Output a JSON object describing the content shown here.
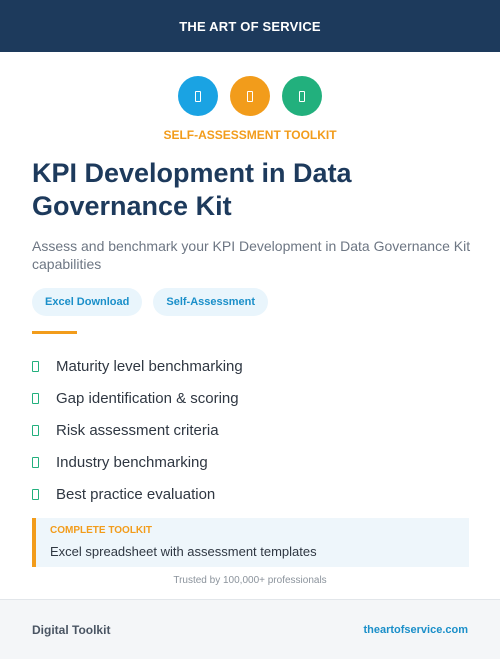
{
  "header": {
    "brand": "THE ART OF SERVICE"
  },
  "icons": [
    {
      "name": "spreadsheet-icon",
      "color": "#1aa3e3"
    },
    {
      "name": "chart-icon",
      "color": "#f29c1b"
    },
    {
      "name": "checklist-icon",
      "color": "#22b07d"
    }
  ],
  "hero": {
    "eyebrow": "SELF-ASSESSMENT TOOLKIT",
    "title": "KPI Development in Data Governance Kit",
    "subtitle": "Assess and benchmark your KPI Development in Data Governance Kit capabilities"
  },
  "tags": [
    "Excel Download",
    "Self-Assessment"
  ],
  "features": [
    "Maturity level benchmarking",
    "Gap identification & scoring",
    "Risk assessment criteria",
    "Industry benchmarking",
    "Best practice evaluation"
  ],
  "callout": {
    "label": "COMPLETE TOOLKIT",
    "text": "Excel spreadsheet with assessment templates"
  },
  "trusted": "Trusted by 100,000+ professionals",
  "footer": {
    "left": "Digital Toolkit",
    "right": "theartofservice.com"
  },
  "colors": {
    "navy": "#1d3a5c",
    "orange": "#f29c1b",
    "blue": "#1aa3e3",
    "green": "#22b07d"
  }
}
